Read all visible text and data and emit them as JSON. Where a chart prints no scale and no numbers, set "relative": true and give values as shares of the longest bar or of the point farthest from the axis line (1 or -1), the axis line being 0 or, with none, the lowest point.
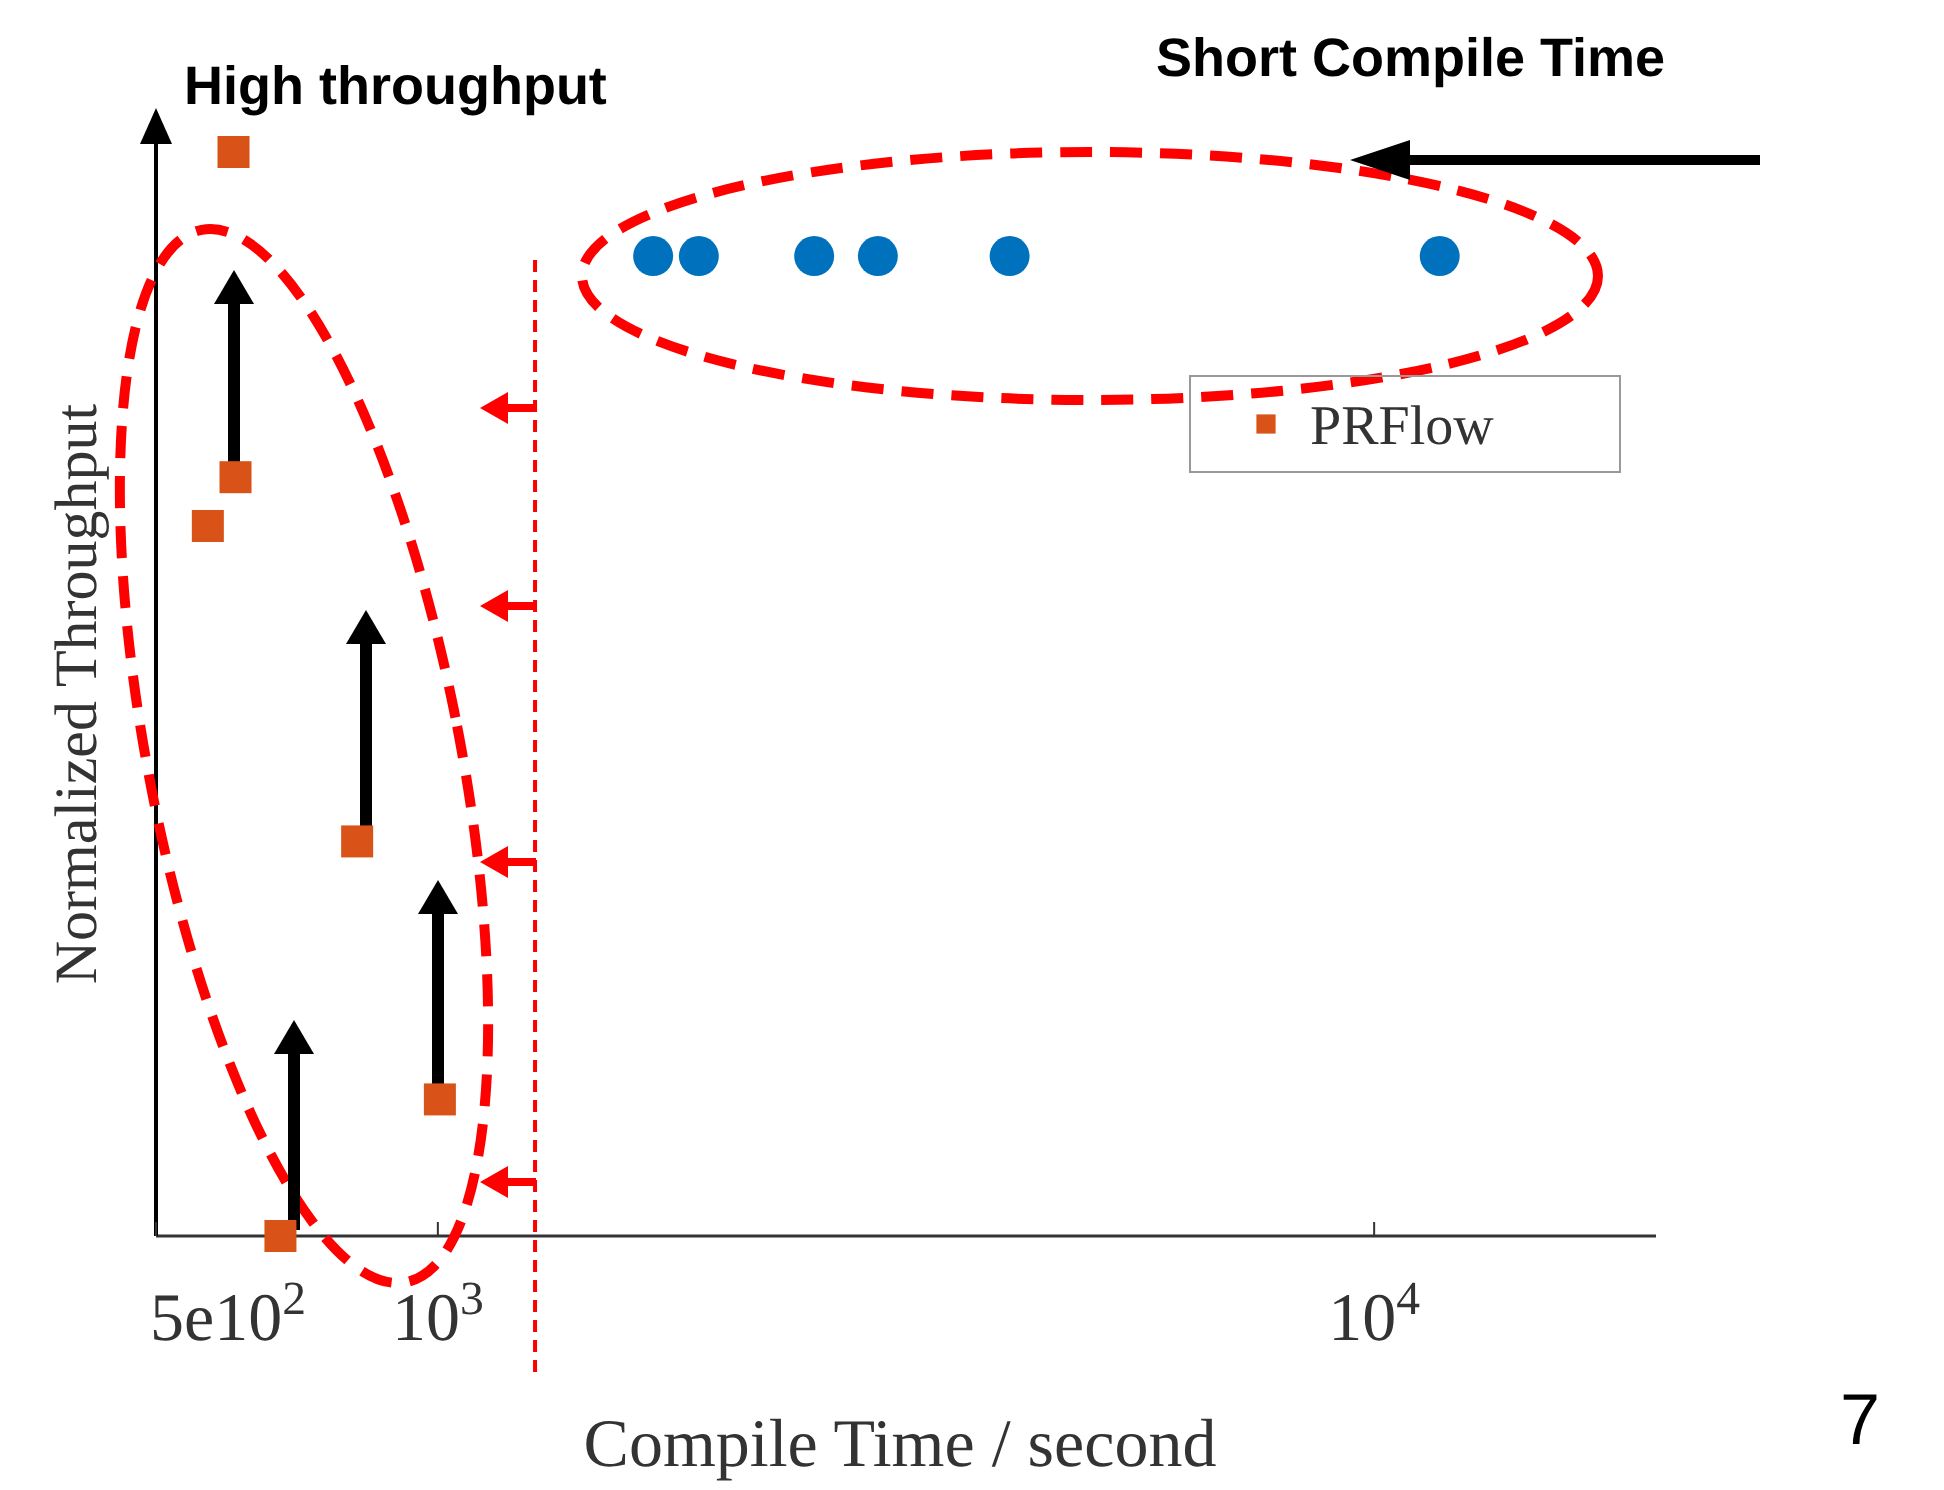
{
  "chart_data": {
    "type": "scatter",
    "xlabel": "Compile Time / second",
    "ylabel": "Normalized Throughput",
    "log": "x",
    "xlim": [
      500,
      20000
    ],
    "xticks": [
      {
        "value": 500,
        "label": "5e10$^{2}$"
      },
      {
        "value": 1000,
        "label": "10$^{3}$"
      },
      {
        "value": 10000,
        "label": "10$^{4}$"
      }
    ],
    "relative": true,
    "tick_labels": "x",
    "legend": "top right",
    "grid": false,
    "series": [
      {
        "color": "#0072bd",
        "marker": "circle",
        "x": [
          1698,
          1900,
          2523,
          2951,
          4080,
          11750
        ],
        "values": [
          0.904,
          0.904,
          0.904,
          0.904,
          0.904,
          0.904
        ]
      },
      {
        "name": "PRFlow",
        "color": "#d95319",
        "marker": "square",
        "x": [
          605,
          608,
          568,
          820,
          1005,
          679
        ],
        "values": [
          1,
          0.7,
          0.655,
          0.364,
          0.126,
          0
        ]
      }
    ],
    "ref_lines": [
      {
        "axis": "x",
        "value": 1270,
        "color": "#ff0000",
        "line_style": "dashed"
      }
    ],
    "annotations": [
      "High throughput",
      "Short Compile Time",
      "7"
    ]
  }
}
